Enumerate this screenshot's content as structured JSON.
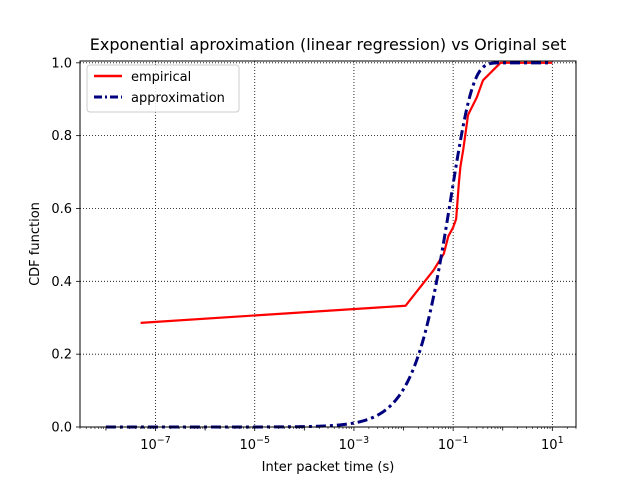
{
  "chart_data": {
    "type": "line",
    "title": "Exponential aproximation (linear regression) vs Original set",
    "xlabel": "Inter packet time (s)",
    "ylabel": "CDF function",
    "xscale": "log",
    "xlim": [
      3e-09,
      30
    ],
    "ylim": [
      0,
      1.005
    ],
    "grid": true,
    "grid_style": "dotted",
    "legend_position": "top-left",
    "x_ticks": [
      {
        "value": 1e-07,
        "base": "10",
        "exp": "−7"
      },
      {
        "value": 1e-05,
        "base": "10",
        "exp": "−5"
      },
      {
        "value": 0.001,
        "base": "10",
        "exp": "−3"
      },
      {
        "value": 0.1,
        "base": "10",
        "exp": "−1"
      },
      {
        "value": 10,
        "base": "10",
        "exp": "1"
      }
    ],
    "y_ticks": [
      {
        "value": 0.0,
        "label": "0.0"
      },
      {
        "value": 0.2,
        "label": "0.2"
      },
      {
        "value": 0.4,
        "label": "0.4"
      },
      {
        "value": 0.6,
        "label": "0.6"
      },
      {
        "value": 0.8,
        "label": "0.8"
      },
      {
        "value": 1.0,
        "label": "1.0"
      }
    ],
    "series": [
      {
        "name": "empirical",
        "color": "#ff0000",
        "style": "solid",
        "points": [
          [
            5e-08,
            0.286
          ],
          [
            0.011,
            0.333
          ],
          [
            0.04,
            0.43
          ],
          [
            0.065,
            0.476
          ],
          [
            0.08,
            0.524
          ],
          [
            0.1,
            0.548
          ],
          [
            0.115,
            0.571
          ],
          [
            0.13,
            0.667
          ],
          [
            0.14,
            0.714
          ],
          [
            0.16,
            0.762
          ],
          [
            0.2,
            0.857
          ],
          [
            0.3,
            0.905
          ],
          [
            0.4,
            0.952
          ],
          [
            0.9,
            1.0
          ],
          [
            10,
            1.0
          ]
        ]
      },
      {
        "name": "approximation",
        "color": "#00007f",
        "style": "dashdot",
        "model": "exponential",
        "rate": 11
      }
    ]
  }
}
